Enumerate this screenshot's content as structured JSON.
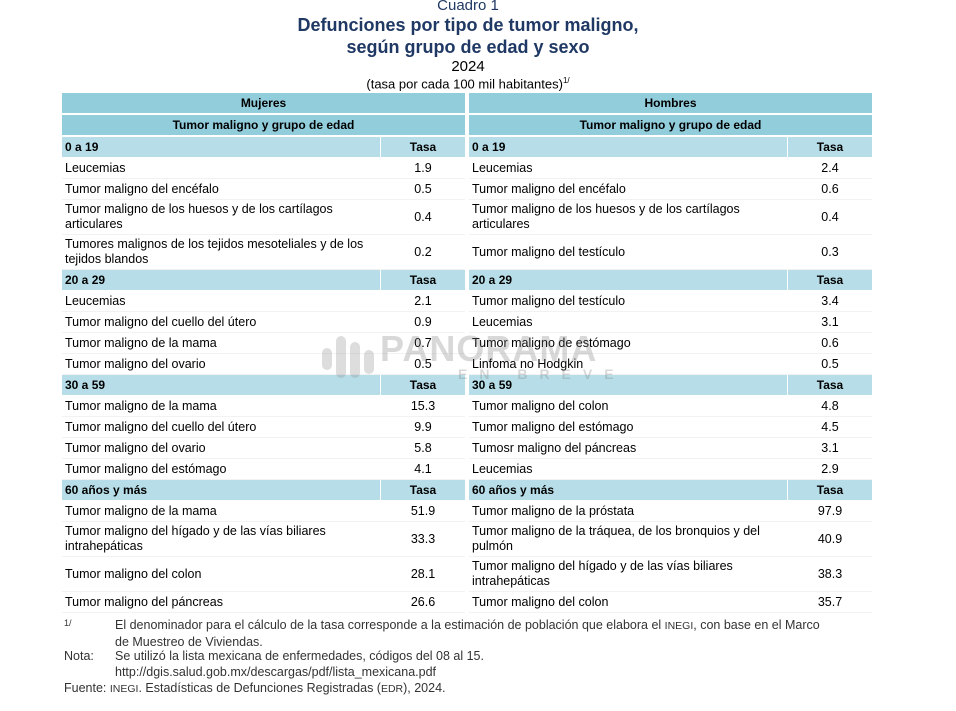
{
  "header": {
    "cuadro": "Cuadro 1",
    "title_line1": "Defunciones por tipo de tumor maligno,",
    "title_line2": "según grupo de edad y sexo",
    "year": "2024",
    "unit": "(tasa por cada 100 mil habitantes)",
    "unit_note": "1/"
  },
  "table": {
    "women_label": "Mujeres",
    "men_label": "Hombres",
    "subheader": "Tumor maligno y grupo de edad",
    "rate_label": "Tasa",
    "groups": [
      {
        "label": "0 a 19",
        "women": [
          {
            "name": "Leucemias",
            "rate": "1.9"
          },
          {
            "name": "Tumor maligno del encéfalo",
            "rate": "0.5"
          },
          {
            "name": "Tumor maligno de los huesos y de los cartílagos articulares",
            "rate": "0.4"
          },
          {
            "name": "Tumores malignos de los tejidos mesoteliales y de los tejidos blandos",
            "rate": "0.2"
          }
        ],
        "men": [
          {
            "name": "Leucemias",
            "rate": "2.4"
          },
          {
            "name": "Tumor maligno del encéfalo",
            "rate": "0.6"
          },
          {
            "name": "Tumor maligno de los huesos y de los cartílagos articulares",
            "rate": "0.4"
          },
          {
            "name": "Tumor maligno del testículo",
            "rate": "0.3"
          }
        ]
      },
      {
        "label": "20 a 29",
        "women": [
          {
            "name": "Leucemias",
            "rate": "2.1"
          },
          {
            "name": "Tumor maligno del cuello del útero",
            "rate": "0.9"
          },
          {
            "name": "Tumor maligno de la mama",
            "rate": "0.7"
          },
          {
            "name": "Tumor maligno del ovario",
            "rate": "0.5"
          }
        ],
        "men": [
          {
            "name": "Tumor maligno del testículo",
            "rate": "3.4"
          },
          {
            "name": "Leucemias",
            "rate": "3.1"
          },
          {
            "name": "Tumor maligno de estómago",
            "rate": "0.6"
          },
          {
            "name": "Linfoma no Hodgkin",
            "rate": "0.5"
          }
        ]
      },
      {
        "label": "30 a 59",
        "women": [
          {
            "name": "Tumor maligno de la mama",
            "rate": "15.3"
          },
          {
            "name": "Tumor maligno del cuello del útero",
            "rate": "9.9"
          },
          {
            "name": "Tumor maligno del ovario",
            "rate": "5.8"
          },
          {
            "name": "Tumor maligno del estómago",
            "rate": "4.1"
          }
        ],
        "men": [
          {
            "name": "Tumor maligno del colon",
            "rate": "4.8"
          },
          {
            "name": "Tumor maligno del estómago",
            "rate": "4.5"
          },
          {
            "name": "Tumosr maligno del páncreas",
            "rate": "3.1"
          },
          {
            "name": "Leucemias",
            "rate": "2.9"
          }
        ]
      },
      {
        "label": "60 años y más",
        "women": [
          {
            "name": "Tumor maligno de la mama",
            "rate": "51.9"
          },
          {
            "name": "Tumor maligno del hígado y  de las vías biliares intrahepáticas",
            "rate": "33.3"
          },
          {
            "name": "Tumor maligno del colon",
            "rate": "28.1"
          },
          {
            "name": "Tumor maligno del páncreas",
            "rate": "26.6"
          }
        ],
        "men": [
          {
            "name": "Tumor maligno de la próstata",
            "rate": "97.9"
          },
          {
            "name": "Tumor maligno de la tráquea, de los bronquios y del pulmón",
            "rate": "40.9"
          },
          {
            "name": "Tumor maligno del hígado y  de las vías biliares intrahepáticas",
            "rate": "38.3"
          },
          {
            "name": "Tumor maligno del colon",
            "rate": "35.7"
          }
        ]
      }
    ]
  },
  "watermark": {
    "line1": "PANORAMA",
    "line2": "EN BREVE"
  },
  "footnotes": {
    "note1_mark": "1/",
    "note1_text_a": "El denominador para el cálculo de la tasa corresponde a la estimación de población que elabora el ",
    "note1_inegi": "INEGI",
    "note1_text_b": ", con base en el Marco",
    "note1_line2": "de Muestreo de Viviendas.",
    "nota_label": "Nota:",
    "nota_line1": "Se utilizó la lista mexicana de enfermedades, códigos del 08 al 15.",
    "nota_line2": "http://dgis.salud.gob.mx/descargas/pdf/lista_mexicana.pdf",
    "fuente_label": "Fuente: ",
    "fuente_inegi": "INEGI",
    "fuente_text_a": ". Estadísticas de Defunciones Registradas (",
    "fuente_edr": "EDR",
    "fuente_text_b": "), 2024."
  }
}
